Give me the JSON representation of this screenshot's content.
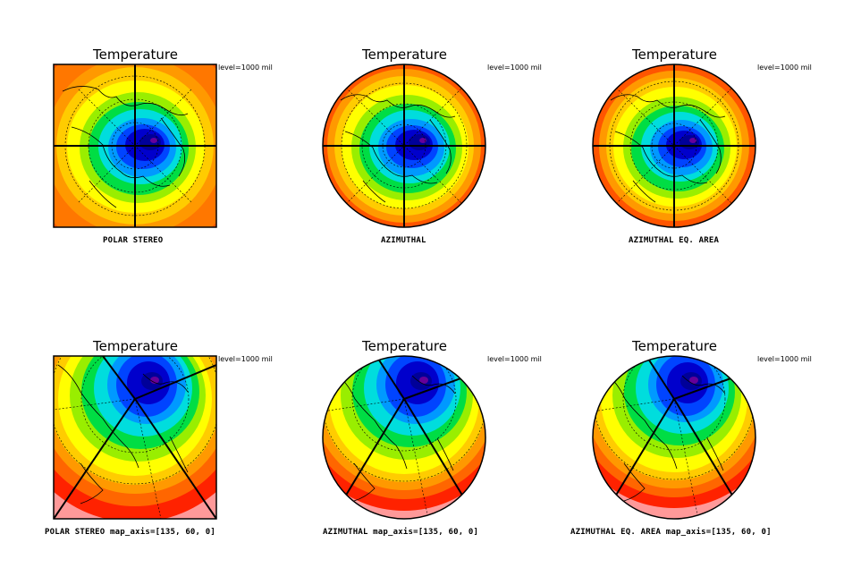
{
  "panels": [
    {
      "title": "Temperature",
      "level": "level=1000 mil",
      "caption": "POLAR STEREO"
    },
    {
      "title": "Temperature",
      "level": "level=1000 mil",
      "caption": "AZIMUTHAL"
    },
    {
      "title": "Temperature",
      "level": "level=1000 mil",
      "caption": "AZIMUTHAL EQ. AREA"
    },
    {
      "title": "Temperature",
      "level": "level=1000 mil",
      "caption": "POLAR STEREO  map_axis=[135, 60, 0]"
    },
    {
      "title": "Temperature",
      "level": "level=1000 mil",
      "caption": "AZIMUTHAL  map_axis=[135, 60, 0]"
    },
    {
      "title": "Temperature",
      "level": "level=1000 mil",
      "caption": "AZIMUTHAL EQ. AREA  map_axis=[135, 60, 0]"
    }
  ],
  "colors": {
    "temperature_bands": [
      "#ff9999",
      "#ff2200",
      "#ff6600",
      "#ff9900",
      "#ffcc00",
      "#ffff00",
      "#99ee00",
      "#00dd44",
      "#00dddd",
      "#0099ff",
      "#0044ff",
      "#0000cc",
      "#000099",
      "#660099"
    ]
  }
}
